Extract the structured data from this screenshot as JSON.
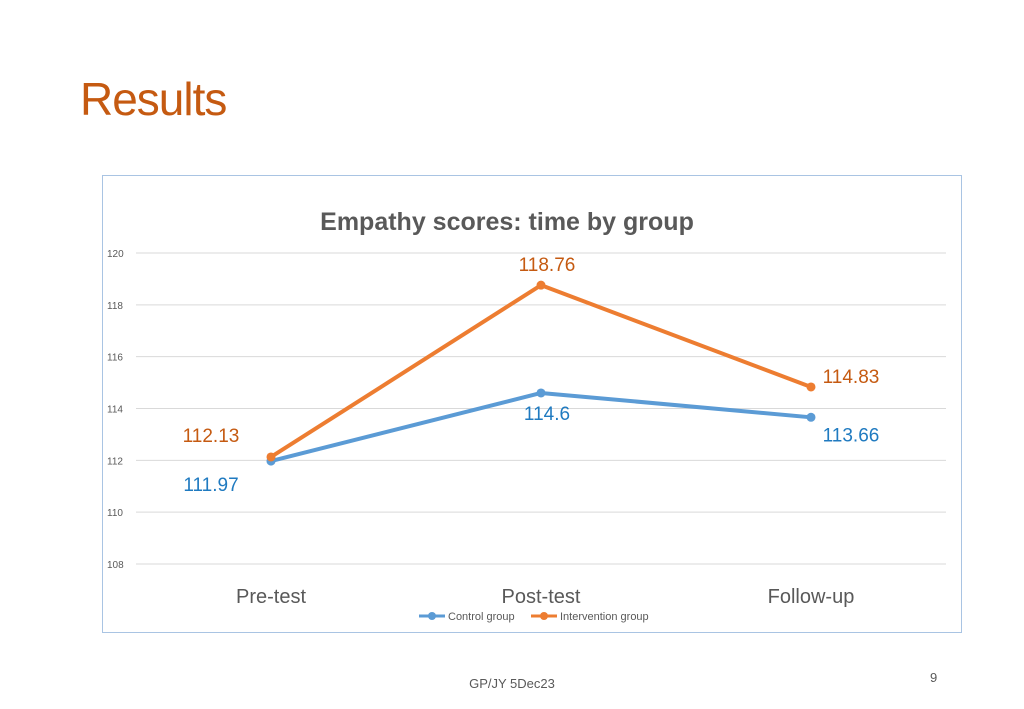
{
  "slide": {
    "title": "Results",
    "footer": "GP/JY 5Dec23",
    "page_number": "9"
  },
  "chart_data": {
    "type": "line",
    "title": "Empathy scores: time by group",
    "xlabel": "",
    "ylabel": "",
    "categories": [
      "Pre-test",
      "Post-test",
      "Follow-up"
    ],
    "ylim": [
      108,
      120
    ],
    "yticks": [
      108,
      110,
      112,
      114,
      116,
      118,
      120
    ],
    "grid": true,
    "legend_position": "bottom",
    "series": [
      {
        "name": "Control group",
        "values": [
          111.97,
          114.6,
          113.66
        ],
        "labels": [
          "111.97",
          "114.6",
          "113.66"
        ],
        "color": "#5B9BD5",
        "label_color": "#1F7AC0"
      },
      {
        "name": "Intervention group",
        "values": [
          112.13,
          118.76,
          114.83
        ],
        "labels": [
          "112.13",
          "118.76",
          "114.83"
        ],
        "color": "#ED7D31",
        "label_color": "#C55A11"
      }
    ]
  }
}
